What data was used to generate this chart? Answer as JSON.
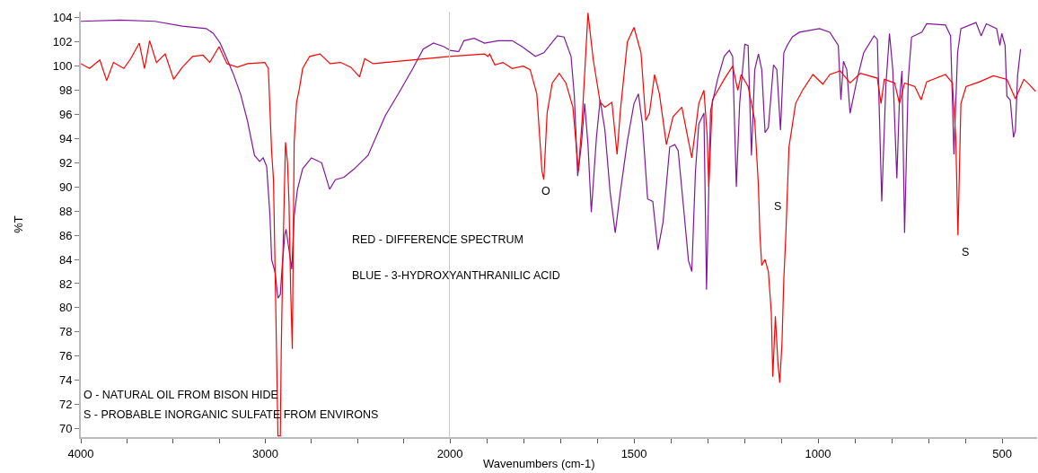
{
  "chart_data": [
    {
      "type": "line",
      "ylabel": "%T",
      "xlim": [
        4000,
        2000
      ],
      "ylim": [
        69.3,
        104.5
      ],
      "xticks": [
        4000,
        {
          "value": 3750,
          "label": null
        },
        {
          "value": 3500,
          "label": null
        },
        {
          "value": 3250,
          "label": null
        },
        3000,
        {
          "value": 2750,
          "label": null
        },
        {
          "value": 2500,
          "label": null
        },
        {
          "value": 2250,
          "label": null
        }
      ],
      "yticks": [
        70,
        72,
        74,
        76,
        78,
        80,
        82,
        84,
        86,
        88,
        90,
        92,
        94,
        96,
        98,
        100,
        102,
        104
      ],
      "grid": false,
      "marker": "none",
      "line_style": "solid",
      "annotations": [
        "RED - DIFFERENCE SPECTRUM",
        "BLUE - 3-HYDROXYANTHRANILIC ACID",
        "O - NATURAL OIL FROM BISON HIDE",
        "S - PROBABLE INORGANIC SULFATE FROM ENVIRONS"
      ],
      "series": [
        {
          "color": "#80179a",
          "x": [
            4000,
            3786,
            3599,
            3450,
            3320,
            3282,
            3245,
            3208,
            3170,
            3133,
            3096,
            3059,
            3031,
            3012,
            2993,
            2975,
            2966,
            2947,
            2932,
            2919,
            2910,
            2895,
            2888,
            2872,
            2857,
            2844,
            2826,
            2798,
            2751,
            2695,
            2652,
            2621,
            2574,
            2518,
            2444,
            2350,
            2276,
            2201,
            2145,
            2089,
            2033,
            2000
          ],
          "values": [
            103.7,
            103.8,
            103.7,
            103.3,
            103.1,
            102.7,
            101.9,
            100.6,
            99.2,
            97.6,
            95.4,
            92.6,
            92.1,
            92.4,
            91.7,
            87.6,
            84.0,
            82.9,
            80.8,
            81.1,
            83.2,
            86.0,
            86.5,
            84.8,
            83.2,
            87.6,
            89.8,
            91.5,
            92.4,
            92.0,
            89.8,
            90.6,
            90.8,
            91.5,
            92.6,
            95.9,
            97.8,
            99.8,
            101.4,
            101.9,
            101.6,
            101.3
          ]
        },
        {
          "color": "#ff0000",
          "x": [
            4000,
            3953,
            3897,
            3860,
            3823,
            3767,
            3730,
            3683,
            3655,
            3627,
            3590,
            3543,
            3497,
            3450,
            3394,
            3338,
            3301,
            3251,
            3208,
            3152,
            3096,
            3003,
            2984,
            2966,
            2956,
            2938,
            2932,
            2919,
            2914,
            2906,
            2891,
            2880,
            2872,
            2863,
            2854,
            2844,
            2831,
            2816,
            2798,
            2760,
            2704,
            2649,
            2593,
            2537,
            2490,
            2462,
            2416,
            2000
          ],
          "values": [
            100.2,
            99.8,
            100.5,
            98.8,
            100.3,
            99.8,
            100.6,
            101.9,
            99.8,
            102.1,
            100.3,
            101.0,
            98.9,
            99.9,
            100.8,
            100.9,
            100.3,
            101.6,
            100.2,
            99.9,
            100.2,
            100.3,
            99.8,
            92.9,
            90.6,
            75.0,
            69.4,
            69.4,
            76.5,
            83.7,
            93.7,
            92.0,
            88.7,
            81.5,
            76.6,
            93.7,
            97.0,
            98.1,
            99.8,
            100.8,
            101.0,
            100.2,
            100.3,
            99.9,
            99.1,
            100.6,
            100.2,
            100.8
          ]
        }
      ]
    },
    {
      "type": "line",
      "xlabel": "Wavenumbers (cm-1)",
      "xlim": [
        2000,
        405
      ],
      "ylim": [
        69.3,
        104.5
      ],
      "tick_labels": "x",
      "xticks": [
        2000,
        {
          "value": 1900,
          "label": null
        },
        {
          "value": 1800,
          "label": null
        },
        {
          "value": 1700,
          "label": null
        },
        {
          "value": 1600,
          "label": null
        },
        1500,
        {
          "value": 1400,
          "label": null
        },
        {
          "value": 1300,
          "label": null
        },
        {
          "value": 1200,
          "label": null
        },
        {
          "value": 1100,
          "label": null
        },
        1000,
        {
          "value": 900,
          "label": null
        },
        {
          "value": 800,
          "label": null
        },
        {
          "value": 700,
          "label": null
        },
        {
          "value": 600,
          "label": null
        },
        500
      ],
      "grid": false,
      "marker": "none",
      "line_style": "solid",
      "annotations": [
        "O",
        "S",
        "S"
      ],
      "series": [
        {
          "color": "#80179a",
          "x": [
            2000,
            1976,
            1962,
            1934,
            1906,
            1869,
            1831,
            1804,
            1768,
            1745,
            1708,
            1690,
            1671,
            1662,
            1653,
            1643,
            1634,
            1625,
            1616,
            1602,
            1592,
            1579,
            1565,
            1551,
            1537,
            1518,
            1500,
            1488,
            1477,
            1463,
            1449,
            1435,
            1421,
            1403,
            1389,
            1380,
            1366,
            1352,
            1343,
            1333,
            1324,
            1310,
            1303,
            1292,
            1273,
            1255,
            1241,
            1232,
            1222,
            1213,
            1199,
            1190,
            1181,
            1172,
            1162,
            1153,
            1144,
            1135,
            1121,
            1112,
            1102,
            1093,
            1084,
            1070,
            1051,
            996,
            968,
            945,
            938,
            931,
            922,
            913,
            894,
            876,
            848,
            839,
            827,
            816,
            806,
            797,
            786,
            779,
            772,
            765,
            755,
            746,
            718,
            705,
            654,
            640,
            631,
            621,
            612,
            571,
            557,
            543,
            515,
            506,
            501,
            492,
            487,
            478,
            469,
            464,
            458,
            450
          ],
          "values": [
            101.3,
            101.2,
            102.1,
            102.3,
            101.9,
            102.1,
            102.1,
            101.6,
            100.8,
            101.1,
            102.5,
            102.4,
            100.8,
            97.5,
            90.9,
            93.5,
            96.9,
            93.5,
            87.9,
            94.1,
            97.2,
            94.7,
            89.6,
            86.2,
            89.6,
            93.8,
            96.9,
            97.7,
            95.2,
            89.0,
            88.8,
            84.8,
            87.1,
            93.3,
            93.5,
            93.0,
            88.5,
            83.9,
            83.0,
            91.3,
            95.2,
            96.1,
            81.5,
            96.3,
            98.9,
            100.8,
            101.3,
            100.8,
            90.0,
            96.9,
            101.8,
            101.7,
            92.6,
            99.7,
            101.0,
            99.7,
            94.5,
            94.9,
            100.1,
            99.7,
            94.7,
            101.1,
            101.7,
            102.4,
            102.8,
            103.1,
            102.8,
            101.7,
            97.2,
            100.4,
            99.7,
            96.1,
            98.9,
            101.1,
            102.5,
            102.2,
            88.8,
            98.3,
            102.7,
            99.7,
            90.7,
            97.2,
            99.6,
            86.2,
            98.9,
            102.4,
            102.8,
            103.5,
            103.4,
            102.5,
            92.7,
            101.1,
            103.1,
            103.6,
            102.5,
            103.5,
            103.1,
            101.7,
            102.7,
            101.7,
            97.5,
            97.2,
            94.1,
            94.7,
            99.2,
            101.4
          ]
        },
        {
          "color": "#ff0000",
          "x": [
            2000,
            1906,
            1897,
            1892,
            1878,
            1856,
            1831,
            1801,
            1782,
            1764,
            1750,
            1745,
            1736,
            1722,
            1703,
            1685,
            1666,
            1651,
            1641,
            1625,
            1611,
            1592,
            1579,
            1560,
            1546,
            1537,
            1518,
            1500,
            1481,
            1468,
            1458,
            1444,
            1431,
            1412,
            1394,
            1370,
            1352,
            1343,
            1324,
            1310,
            1301,
            1297,
            1287,
            1255,
            1232,
            1218,
            1209,
            1190,
            1172,
            1162,
            1158,
            1153,
            1144,
            1135,
            1127,
            1123,
            1116,
            1109,
            1104,
            1098,
            1093,
            1088,
            1079,
            1061,
            1042,
            1014,
            987,
            968,
            940,
            913,
            885,
            839,
            829,
            820,
            792,
            779,
            765,
            737,
            720,
            705,
            654,
            635,
            626,
            620,
            612,
            598,
            561,
            524,
            487,
            464,
            441,
            427,
            409
          ],
          "values": [
            100.8,
            101.0,
            100.8,
            101.0,
            100.1,
            100.3,
            99.8,
            100.0,
            99.7,
            97.7,
            91.3,
            90.6,
            96.1,
            98.6,
            99.4,
            98.6,
            96.6,
            91.3,
            95.5,
            104.4,
            100.6,
            97.0,
            96.6,
            97.0,
            92.7,
            96.3,
            102.0,
            103.2,
            101.1,
            95.5,
            96.1,
            99.3,
            97.7,
            93.5,
            95.8,
            96.6,
            93.8,
            92.4,
            96.9,
            98.0,
            94.1,
            90.0,
            97.2,
            98.9,
            100.0,
            98.0,
            99.3,
            98.3,
            95.5,
            90.1,
            86.1,
            83.5,
            84.0,
            83.0,
            79.6,
            74.3,
            79.3,
            75.4,
            73.8,
            77.1,
            82.4,
            85.7,
            93.3,
            96.9,
            98.0,
            99.3,
            98.5,
            99.3,
            99.6,
            98.6,
            99.4,
            99.0,
            96.9,
            98.9,
            98.6,
            96.9,
            98.6,
            98.3,
            97.2,
            98.7,
            99.3,
            98.6,
            94.1,
            86.0,
            96.9,
            98.3,
            98.7,
            99.2,
            98.9,
            97.3,
            98.9,
            98.5,
            97.9
          ]
        }
      ]
    }
  ]
}
